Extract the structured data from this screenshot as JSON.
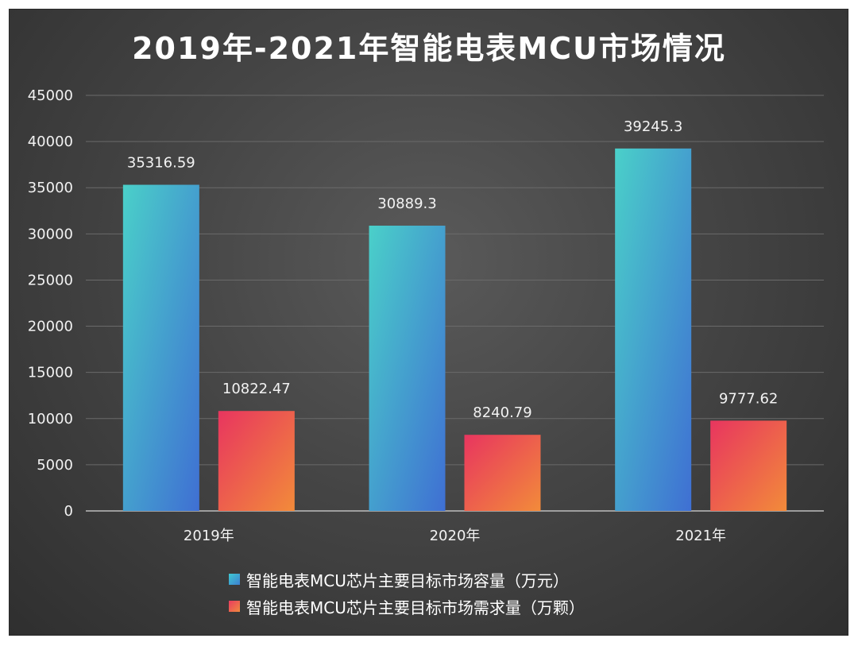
{
  "chart_data": {
    "type": "bar",
    "title": "2019年-2021年智能电表MCU市场情况",
    "categories": [
      "2019年",
      "2020年",
      "2021年"
    ],
    "series": [
      {
        "name": "智能电表MCU芯片主要目标市场容量（万元）",
        "values": [
          35316.59,
          30889.3,
          39245.3
        ],
        "labels": [
          "35316.59",
          "30889.3",
          "39245.3"
        ],
        "color_top": "#4ad0c9",
        "color_bottom": "#3f6fd3"
      },
      {
        "name": "智能电表MCU芯片主要目标市场需求量（万颗）",
        "values": [
          10822.47,
          8240.79,
          9777.62
        ],
        "labels": [
          "10822.47",
          "8240.79",
          "9777.62"
        ],
        "color_top": "#e8355f",
        "color_bottom": "#f28b3a"
      }
    ],
    "ylim": [
      0,
      45000
    ],
    "yticks": [
      "0",
      "5000",
      "10000",
      "15000",
      "20000",
      "25000",
      "30000",
      "35000",
      "40000",
      "45000"
    ],
    "grid": true,
    "legend_position": "bottom",
    "background": "#444444"
  }
}
